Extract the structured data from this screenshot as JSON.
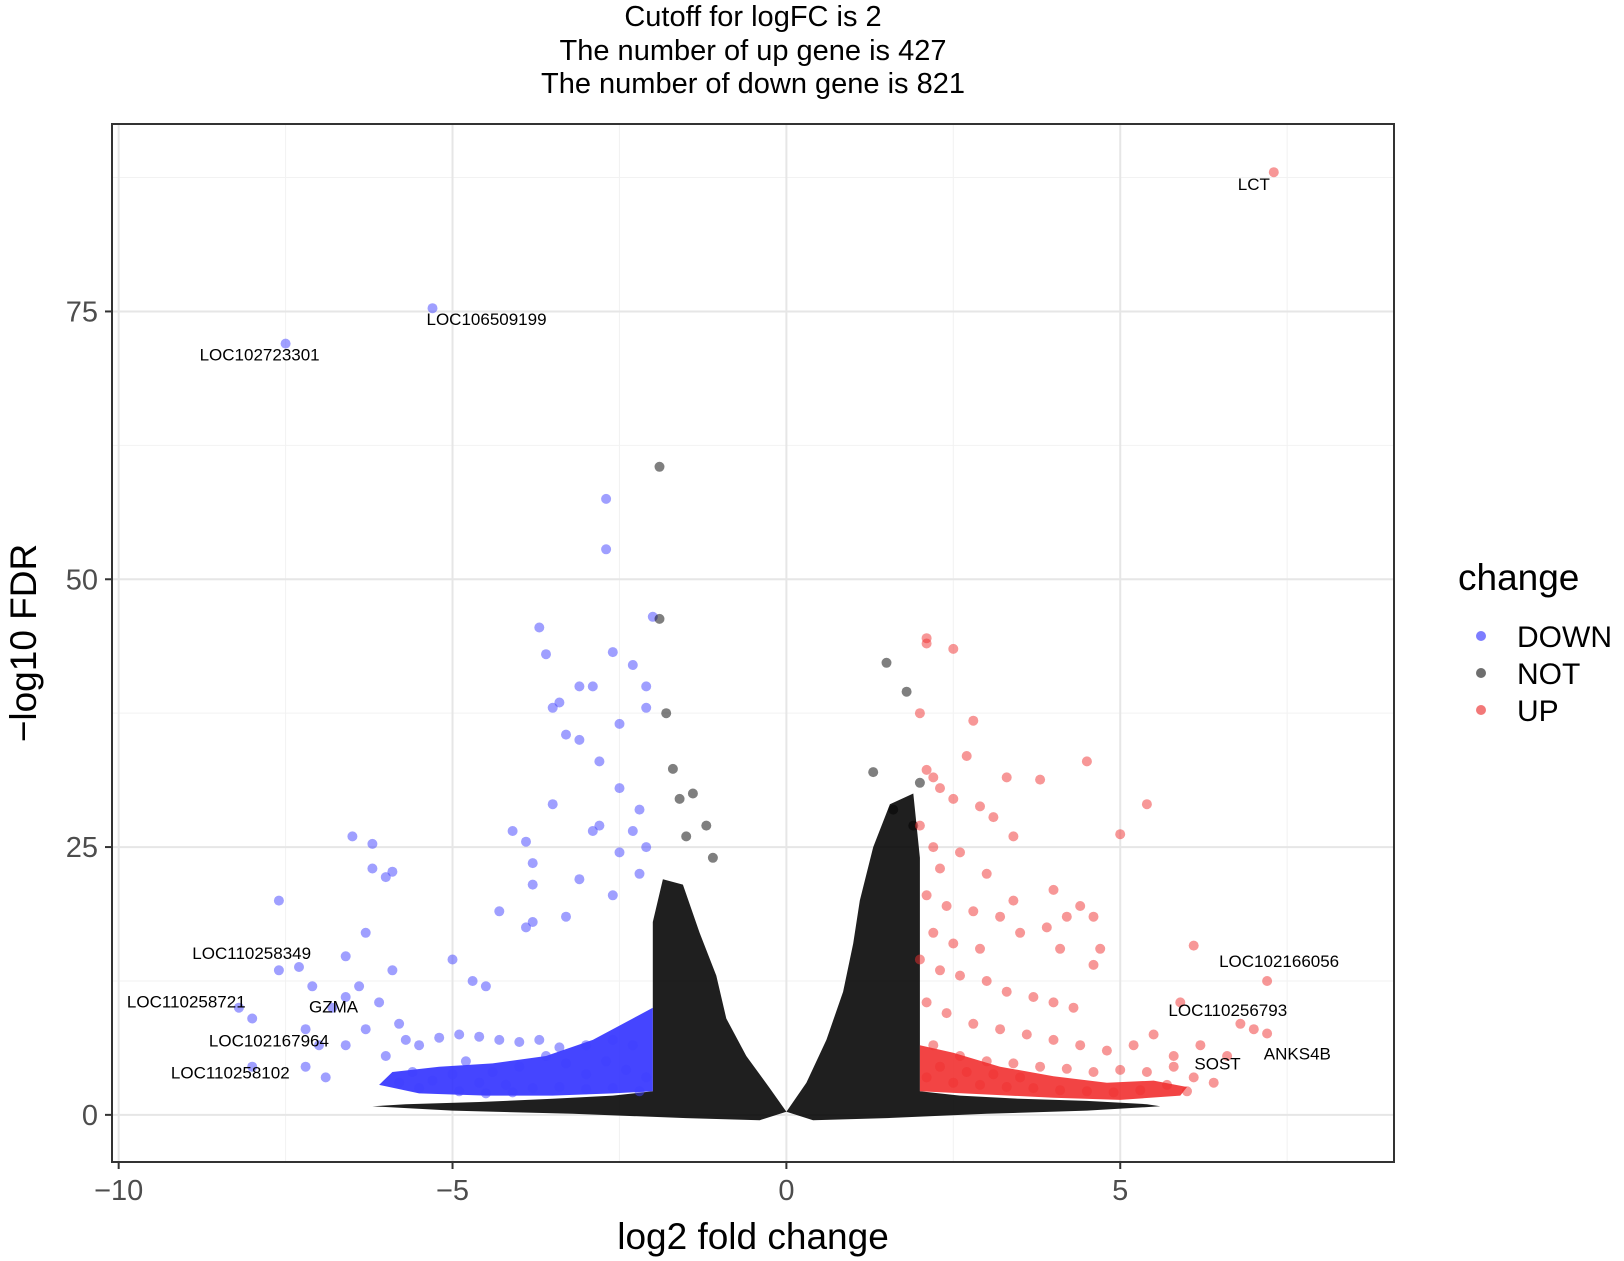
{
  "chart_data": {
    "type": "scatter",
    "title_lines": [
      "Cutoff for logFC is 2",
      "The number of up gene is 427",
      "The number of down gene is 821"
    ],
    "xlabel": "log2 fold change",
    "ylabel": "−log10 FDR",
    "xlim": [
      -10.1,
      9.1
    ],
    "ylim": [
      -4.4,
      92.5
    ],
    "x_ticks": [
      -10,
      -5,
      0,
      5
    ],
    "x_tick_labels": [
      "−10",
      "−5",
      "0",
      "5"
    ],
    "y_ticks": [
      0,
      25,
      50,
      75
    ],
    "y_tick_labels": [
      "0",
      "25",
      "50",
      "75"
    ],
    "grid": true,
    "legend": {
      "title": "change",
      "position": "right",
      "entries": [
        {
          "name": "DOWN",
          "color": "#6666ff"
        },
        {
          "name": "NOT",
          "color": "#555555"
        },
        {
          "name": "UP",
          "color": "#f06060"
        }
      ]
    },
    "series": [
      {
        "name": "DOWN",
        "color": "#4040ff",
        "points": [
          [
            -7.5,
            72
          ],
          [
            -5.3,
            75.3
          ],
          [
            -7.6,
            20
          ],
          [
            -6.5,
            26
          ],
          [
            -6.2,
            25.3
          ],
          [
            -6.2,
            23
          ],
          [
            -6.0,
            22.2
          ],
          [
            -5.9,
            22.7
          ],
          [
            -7.6,
            13.5
          ],
          [
            -7.3,
            13.8
          ],
          [
            -7.1,
            12.0
          ],
          [
            -6.6,
            14.8
          ],
          [
            -6.3,
            17.0
          ],
          [
            -5.9,
            13.5
          ],
          [
            -8.2,
            10.0
          ],
          [
            -8.0,
            9.0
          ],
          [
            -7.2,
            8.0
          ],
          [
            -7.0,
            6.5
          ],
          [
            -6.8,
            10.0
          ],
          [
            -6.6,
            11.0
          ],
          [
            -6.4,
            12.0
          ],
          [
            -6.1,
            10.5
          ],
          [
            -5.8,
            8.5
          ],
          [
            -8.0,
            4.5
          ],
          [
            -7.2,
            4.5
          ],
          [
            -6.9,
            3.5
          ],
          [
            -6.6,
            6.5
          ],
          [
            -6.3,
            8.0
          ],
          [
            -6.0,
            5.5
          ],
          [
            -5.7,
            7.0
          ],
          [
            -5.5,
            6.5
          ],
          [
            -5.2,
            7.2
          ],
          [
            -4.9,
            7.5
          ],
          [
            -4.6,
            7.3
          ],
          [
            -4.3,
            7.0
          ],
          [
            -4.0,
            6.8
          ],
          [
            -3.7,
            7.0
          ],
          [
            -3.4,
            6.3
          ],
          [
            -3.0,
            6.5
          ],
          [
            -2.6,
            7.0
          ],
          [
            -2.3,
            6.5
          ],
          [
            -5.0,
            14.5
          ],
          [
            -4.7,
            12.5
          ],
          [
            -4.5,
            12.0
          ],
          [
            -4.3,
            19.0
          ],
          [
            -4.1,
            26.5
          ],
          [
            -3.9,
            17.5
          ],
          [
            -3.8,
            21.5
          ],
          [
            -3.8,
            18.0
          ],
          [
            -3.7,
            45.5
          ],
          [
            -3.6,
            43.0
          ],
          [
            -3.5,
            38.0
          ],
          [
            -3.4,
            38.5
          ],
          [
            -3.3,
            35.5
          ],
          [
            -3.1,
            35.0
          ],
          [
            -3.1,
            40.0
          ],
          [
            -2.9,
            40.0
          ],
          [
            -2.8,
            33.0
          ],
          [
            -2.7,
            52.8
          ],
          [
            -2.7,
            57.5
          ],
          [
            -2.6,
            43.2
          ],
          [
            -2.5,
            36.5
          ],
          [
            -2.5,
            30.5
          ],
          [
            -2.3,
            42.0
          ],
          [
            -2.2,
            28.5
          ],
          [
            -2.1,
            40.0
          ],
          [
            -2.1,
            38.0
          ],
          [
            -2.0,
            46.5
          ],
          [
            -3.9,
            25.5
          ],
          [
            -3.8,
            23.5
          ],
          [
            -3.5,
            29.0
          ],
          [
            -3.3,
            18.5
          ],
          [
            -3.1,
            22.0
          ],
          [
            -2.9,
            26.5
          ],
          [
            -2.8,
            27.0
          ],
          [
            -2.6,
            20.5
          ],
          [
            -2.5,
            24.5
          ],
          [
            -2.3,
            26.5
          ],
          [
            -2.2,
            22.5
          ],
          [
            -2.1,
            25.0
          ],
          [
            -4.8,
            5.0
          ],
          [
            -4.4,
            4.0
          ],
          [
            -4.0,
            4.5
          ],
          [
            -3.6,
            5.5
          ],
          [
            -3.3,
            4.8
          ],
          [
            -3.0,
            3.8
          ],
          [
            -2.7,
            5.0
          ],
          [
            -2.4,
            4.2
          ],
          [
            -2.1,
            3.5
          ],
          [
            -5.6,
            4.0
          ],
          [
            -5.3,
            3.2
          ],
          [
            -5.0,
            3.8
          ],
          [
            -4.6,
            3.0
          ],
          [
            -4.2,
            2.8
          ],
          [
            -3.8,
            2.5
          ],
          [
            -3.4,
            2.6
          ],
          [
            -3.0,
            2.4
          ],
          [
            -2.6,
            2.5
          ],
          [
            -2.2,
            2.2
          ],
          [
            -5.8,
            3.0
          ],
          [
            -5.5,
            2.5
          ],
          [
            -4.9,
            2.2
          ],
          [
            -4.5,
            2.0
          ],
          [
            -4.1,
            2.1
          ]
        ]
      },
      {
        "name": "NOT",
        "color": "#000000",
        "points": [
          [
            -1.9,
            60.5
          ],
          [
            -1.9,
            46.3
          ],
          [
            -1.8,
            37.5
          ],
          [
            -1.7,
            32.3
          ],
          [
            -1.6,
            29.5
          ],
          [
            -1.4,
            30.0
          ],
          [
            -1.2,
            27.0
          ],
          [
            -1.5,
            26.0
          ],
          [
            -1.1,
            24.0
          ],
          [
            1.5,
            42.2
          ],
          [
            1.8,
            39.5
          ],
          [
            2.0,
            31.0
          ],
          [
            1.3,
            32.0
          ],
          [
            1.6,
            28.5
          ],
          [
            1.9,
            27.0
          ]
        ]
      },
      {
        "name": "UP",
        "color": "#f03030",
        "points": [
          [
            7.3,
            88
          ],
          [
            7.2,
            12.5
          ],
          [
            6.1,
            15.8
          ],
          [
            5.9,
            10.5
          ],
          [
            6.8,
            8.5
          ],
          [
            7.0,
            8.0
          ],
          [
            7.2,
            7.6
          ],
          [
            6.6,
            5.5
          ],
          [
            6.2,
            6.5
          ],
          [
            5.8,
            5.5
          ],
          [
            2.1,
            44.5
          ],
          [
            2.1,
            44.0
          ],
          [
            2.5,
            43.5
          ],
          [
            2.0,
            37.5
          ],
          [
            2.8,
            36.8
          ],
          [
            2.7,
            33.5
          ],
          [
            2.1,
            32.2
          ],
          [
            2.2,
            31.5
          ],
          [
            3.3,
            31.5
          ],
          [
            3.8,
            31.3
          ],
          [
            4.5,
            33.0
          ],
          [
            5.4,
            29.0
          ],
          [
            5.0,
            26.2
          ],
          [
            2.3,
            30.5
          ],
          [
            2.5,
            29.5
          ],
          [
            2.9,
            28.8
          ],
          [
            3.1,
            27.8
          ],
          [
            3.4,
            26.0
          ],
          [
            2.0,
            27.0
          ],
          [
            2.2,
            25.0
          ],
          [
            2.6,
            24.5
          ],
          [
            2.3,
            23.0
          ],
          [
            3.0,
            22.5
          ],
          [
            3.4,
            20.0
          ],
          [
            4.0,
            21.0
          ],
          [
            2.1,
            20.5
          ],
          [
            2.4,
            19.5
          ],
          [
            2.8,
            19.0
          ],
          [
            3.2,
            18.5
          ],
          [
            3.9,
            17.5
          ],
          [
            4.4,
            19.5
          ],
          [
            4.6,
            18.5
          ],
          [
            4.2,
            18.5
          ],
          [
            2.2,
            17.0
          ],
          [
            2.5,
            16.0
          ],
          [
            2.9,
            15.5
          ],
          [
            3.5,
            17.0
          ],
          [
            4.1,
            15.5
          ],
          [
            4.7,
            15.5
          ],
          [
            4.6,
            14.0
          ],
          [
            2.0,
            14.5
          ],
          [
            2.3,
            13.5
          ],
          [
            2.6,
            13.0
          ],
          [
            3.0,
            12.5
          ],
          [
            3.3,
            11.5
          ],
          [
            3.7,
            11.0
          ],
          [
            4.0,
            10.5
          ],
          [
            4.3,
            10.0
          ],
          [
            2.1,
            10.5
          ],
          [
            2.4,
            9.5
          ],
          [
            2.8,
            8.5
          ],
          [
            3.2,
            8.0
          ],
          [
            3.6,
            7.5
          ],
          [
            4.0,
            7.0
          ],
          [
            4.4,
            6.5
          ],
          [
            4.8,
            6.0
          ],
          [
            5.2,
            6.5
          ],
          [
            5.5,
            7.5
          ],
          [
            2.2,
            6.5
          ],
          [
            2.6,
            5.5
          ],
          [
            3.0,
            5.0
          ],
          [
            3.4,
            4.8
          ],
          [
            3.8,
            4.5
          ],
          [
            4.2,
            4.3
          ],
          [
            4.6,
            4.0
          ],
          [
            5.0,
            4.2
          ],
          [
            5.4,
            4.0
          ],
          [
            5.8,
            4.5
          ],
          [
            6.1,
            3.5
          ],
          [
            6.4,
            3.0
          ],
          [
            2.1,
            3.5
          ],
          [
            2.5,
            3.0
          ],
          [
            2.9,
            2.8
          ],
          [
            3.3,
            2.6
          ],
          [
            3.7,
            2.5
          ],
          [
            4.1,
            2.3
          ],
          [
            4.5,
            2.2
          ],
          [
            4.9,
            2.1
          ],
          [
            5.3,
            2.3
          ],
          [
            5.7,
            2.8
          ],
          [
            6.0,
            2.2
          ],
          [
            2.3,
            4.5
          ],
          [
            2.7,
            4.0
          ],
          [
            3.1,
            3.8
          ],
          [
            3.5,
            3.5
          ]
        ]
      }
    ],
    "labeled_genes": [
      {
        "label": "LCT",
        "x": 7.3,
        "y": 88
      },
      {
        "label": "LOC106509199",
        "x": -5.3,
        "y": 75.3
      },
      {
        "label": "LOC102723301",
        "x": -7.5,
        "y": 72
      },
      {
        "label": "LOC110258349",
        "x": -7.4,
        "y": 15
      },
      {
        "label": "LOC110258721",
        "x": -8.2,
        "y": 10.5
      },
      {
        "label": "GZMA",
        "x": -7.0,
        "y": 10.0
      },
      {
        "label": "LOC102167964",
        "x": -7.6,
        "y": 7.5
      },
      {
        "label": "LOC110258102",
        "x": -7.9,
        "y": 4.5
      },
      {
        "label": "LOC102166056",
        "x": 7.2,
        "y": 12.5
      },
      {
        "label": "LOC110256793",
        "x": 6.8,
        "y": 8.5
      },
      {
        "label": "SOST",
        "x": 6.5,
        "y": 5.0
      },
      {
        "label": "ANKS4B",
        "x": 7.3,
        "y": 7.5
      }
    ]
  }
}
